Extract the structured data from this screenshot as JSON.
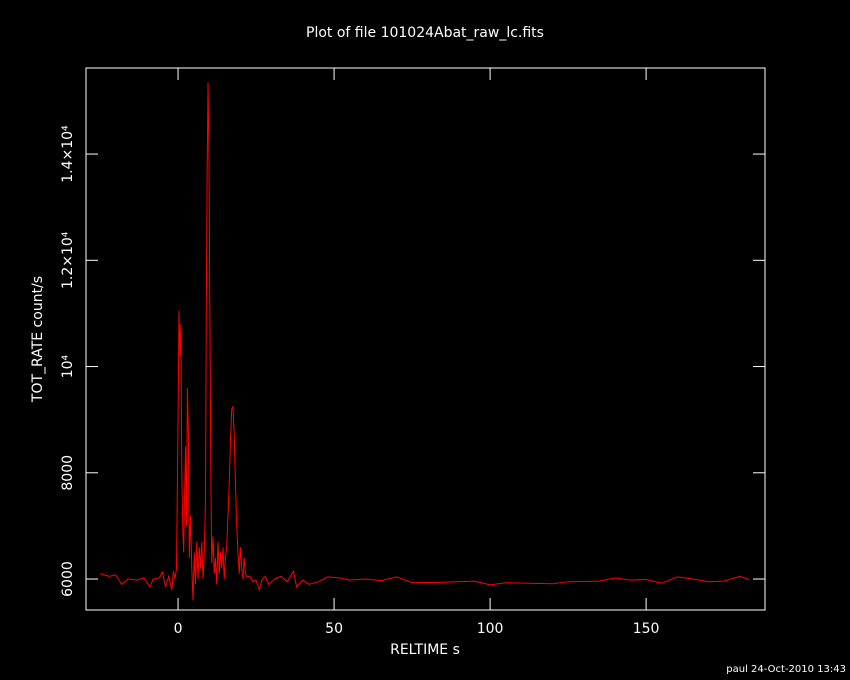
{
  "chart_data": {
    "type": "line",
    "title": "Plot of file 101024Abat_raw_lc.fits",
    "x_label": "RELTIME  s",
    "y_label": "TOT_RATE  count/s",
    "footnote": "paul 24-Oct-2010 13:43",
    "xlim": [
      -29.5,
      188.1
    ],
    "ylim": [
      5417,
      15620
    ],
    "xticks": [
      0,
      50,
      100,
      150
    ],
    "yticks": [
      6000,
      8000,
      {
        "value": 10000,
        "label": "10⁴"
      },
      {
        "value": 12000,
        "label": "1.2×10⁴"
      },
      {
        "value": 14000,
        "label": "1.4×10⁴"
      }
    ],
    "x": [
      -25,
      -22,
      -20,
      -18,
      -16,
      -13,
      -11,
      -9,
      -8,
      -6,
      -5,
      -4,
      -3,
      -2,
      -1.5,
      -1,
      -0.5,
      0,
      0.3,
      0.6,
      0.9,
      1.2,
      1.5,
      1.8,
      2.1,
      2.4,
      2.7,
      3,
      3.3,
      3.6,
      4,
      4.4,
      4.8,
      5.2,
      5.6,
      6,
      6.4,
      6.8,
      7.2,
      7.6,
      8,
      8.4,
      8.8,
      9,
      9.3,
      9.6,
      9.9,
      10.2,
      10.5,
      10.8,
      11.2,
      11.6,
      12,
      12.4,
      12.8,
      13.2,
      13.6,
      14,
      14.4,
      14.8,
      15.2,
      15.6,
      16,
      16.4,
      16.8,
      17.2,
      17.6,
      18,
      18.4,
      18.8,
      19.2,
      19.6,
      20,
      20.4,
      20.8,
      21.2,
      21.6,
      22,
      23,
      24,
      25,
      26,
      27,
      28,
      29,
      31,
      33,
      35,
      37,
      38,
      40,
      42,
      45,
      48,
      52,
      55,
      60,
      65,
      70,
      75,
      85,
      95,
      100,
      105,
      120,
      125,
      135,
      140,
      145,
      150,
      155,
      160,
      165,
      170,
      175,
      180,
      183
    ],
    "series": [
      {
        "name": "TOT_RATE",
        "color": "#ff0000",
        "values": [
          6100,
          6050,
          6080,
          5900,
          6000,
          5980,
          6020,
          5850,
          6000,
          6020,
          6130,
          5850,
          6050,
          5800,
          6150,
          6000,
          6200,
          9000,
          11050,
          10200,
          10800,
          8000,
          7000,
          6500,
          7600,
          8500,
          7000,
          9600,
          8800,
          6400,
          7200,
          6200,
          5600,
          6500,
          5900,
          6700,
          6000,
          6600,
          6200,
          6700,
          6000,
          6500,
          7500,
          10500,
          13500,
          15350,
          14000,
          11000,
          8000,
          6300,
          6800,
          6100,
          6400,
          5900,
          6700,
          6100,
          6500,
          6200,
          6600,
          6000,
          6400,
          6600,
          7200,
          7800,
          8600,
          9200,
          9250,
          8700,
          7800,
          7000,
          6500,
          6100,
          6600,
          6200,
          6000,
          6400,
          6100,
          6050,
          6050,
          5950,
          5980,
          5800,
          6000,
          6050,
          5900,
          6000,
          6050,
          5950,
          6150,
          5850,
          5980,
          5900,
          5950,
          6040,
          6020,
          5980,
          6000,
          5970,
          6040,
          5930,
          5940,
          5960,
          5890,
          5930,
          5910,
          5950,
          5960,
          6020,
          5980,
          5990,
          5920,
          6040,
          6000,
          5950,
          5960,
          6050,
          5990
        ]
      }
    ]
  }
}
